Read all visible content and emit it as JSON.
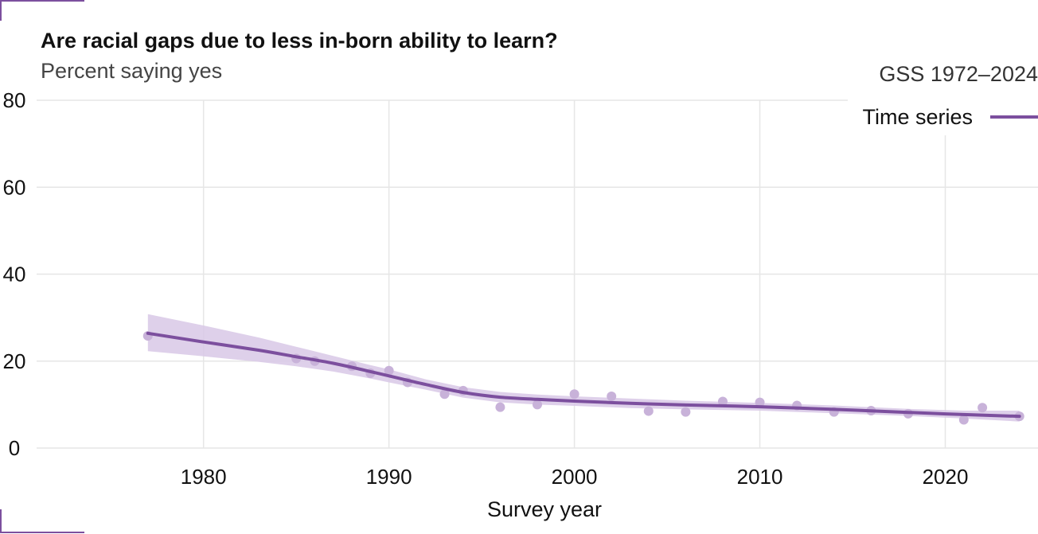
{
  "chart_data": {
    "type": "line",
    "title": "Are racial gaps due to less in-born ability to learn?",
    "subtitle": "Percent saying yes",
    "caption": "GSS 1972–2024",
    "xlabel": "Survey year",
    "ylabel": "",
    "xlim": [
      1971,
      2025
    ],
    "ylim": [
      0,
      80
    ],
    "x_ticks": [
      1980,
      1990,
      2000,
      2010,
      2020
    ],
    "y_ticks": [
      0,
      20,
      40,
      60,
      80
    ],
    "grid": true,
    "legend": {
      "title": "",
      "entries": [
        "Time series"
      ],
      "position": "top-right"
    },
    "colors": {
      "series": "#7c4f9e",
      "band": "#d8c8e6",
      "points": "#c8b2d9",
      "grid": "#e6e6e6"
    },
    "points": {
      "x": [
        1977,
        1985,
        1986,
        1988,
        1989,
        1990,
        1991,
        1993,
        1994,
        1996,
        1998,
        2000,
        2002,
        2004,
        2006,
        2008,
        2010,
        2012,
        2014,
        2016,
        2018,
        2021,
        2022,
        2024
      ],
      "y": [
        25.8,
        20.6,
        20.0,
        18.8,
        17.2,
        17.8,
        15.1,
        12.4,
        13.2,
        9.4,
        10.0,
        12.4,
        11.9,
        8.5,
        8.3,
        10.7,
        10.5,
        9.8,
        8.3,
        8.6,
        7.9,
        6.5,
        9.3,
        7.3
      ]
    },
    "series": [
      {
        "name": "Time series",
        "x": [
          1977,
          1980,
          1983,
          1985,
          1987,
          1989,
          1990,
          1992,
          1994,
          1996,
          1998,
          2000,
          2003,
          2006,
          2010,
          2014,
          2018,
          2021,
          2024
        ],
        "y": [
          26.4,
          24.4,
          22.5,
          21.0,
          19.5,
          17.6,
          16.6,
          14.6,
          12.8,
          11.7,
          11.2,
          10.8,
          10.3,
          9.9,
          9.5,
          8.9,
          8.2,
          7.7,
          7.3
        ],
        "lower": [
          22.3,
          21.1,
          19.8,
          18.8,
          17.6,
          16.0,
          15.1,
          13.4,
          11.6,
          10.5,
          10.0,
          9.7,
          9.2,
          8.9,
          8.6,
          8.0,
          7.4,
          6.8,
          6.1
        ],
        "upper": [
          30.8,
          28.2,
          25.4,
          23.3,
          21.2,
          19.1,
          18.1,
          15.8,
          14.0,
          12.9,
          12.3,
          11.9,
          11.4,
          10.9,
          10.4,
          9.8,
          9.0,
          8.6,
          8.6
        ]
      }
    ]
  }
}
